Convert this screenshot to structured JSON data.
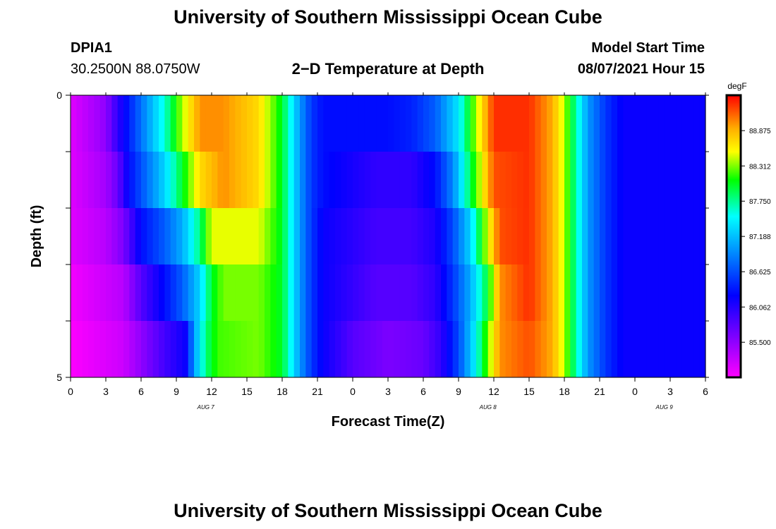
{
  "page": {
    "title_top": "University of Southern Mississippi Ocean Cube",
    "title_bottom": "University of Southern Mississippi Ocean Cube",
    "station": "DPIA1",
    "coords": "30.2500N  88.0750W",
    "subtitle": "2−D Temperature at Depth",
    "model_label": "Model Start Time",
    "model_time": "08/07/2021 Hour 15"
  },
  "chart_data": {
    "type": "heatmap",
    "title": "2−D Temperature at Depth",
    "xlabel": "Forecast Time(Z)",
    "ylabel": "Depth (ft)",
    "x_hours": [
      0,
      3,
      6,
      9,
      12,
      15,
      18,
      21,
      24,
      27,
      30,
      33,
      36,
      39,
      42,
      45,
      48,
      51,
      54
    ],
    "x_tick_labels": [
      "0",
      "3",
      "6",
      "9",
      "12",
      "15",
      "18",
      "21",
      "0",
      "3",
      "6",
      "9",
      "12",
      "15",
      "18",
      "21",
      "0",
      "3",
      "6"
    ],
    "date_labels": [
      {
        "label": "AUG  7",
        "hour": 11.5
      },
      {
        "label": "AUG  8",
        "hour": 35.5
      },
      {
        "label": "AUG  9",
        "hour": 50.5
      }
    ],
    "ylim": [
      0,
      5
    ],
    "y_tick_labels": [
      "0",
      "5"
    ],
    "depth_layers": [
      0,
      1,
      2,
      3,
      4
    ],
    "colorbar": {
      "unit": "degF",
      "range": [
        84.94,
        89.44
      ],
      "tick_values": [
        85.5,
        86.062,
        86.625,
        87.188,
        87.75,
        88.312,
        88.875
      ],
      "tick_labels": [
        "85.500",
        "86.062",
        "86.625",
        "87.188",
        "87.750",
        "88.312",
        "88.875"
      ]
    },
    "profiles": [
      {
        "depth": 0,
        "t": [
          [
            0,
            85.1
          ],
          [
            3,
            85.5
          ],
          [
            4,
            86.0
          ],
          [
            6,
            86.8
          ],
          [
            8,
            87.6
          ],
          [
            9.5,
            88.4
          ],
          [
            11,
            89.0
          ],
          [
            13,
            89.0
          ],
          [
            16,
            88.7
          ],
          [
            18,
            88.0
          ],
          [
            19.5,
            87.0
          ],
          [
            20.5,
            86.5
          ],
          [
            21.5,
            86.3
          ],
          [
            27,
            86.3
          ],
          [
            29,
            86.4
          ],
          [
            31,
            86.7
          ],
          [
            33,
            87.4
          ],
          [
            34.5,
            88.4
          ],
          [
            36,
            89.3
          ],
          [
            39,
            89.3
          ],
          [
            41,
            88.9
          ],
          [
            42,
            88.4
          ],
          [
            43,
            87.7
          ],
          [
            44,
            87.0
          ],
          [
            45.5,
            86.5
          ],
          [
            47,
            86.2
          ],
          [
            54,
            86.2
          ]
        ]
      },
      {
        "depth": 1,
        "t": [
          [
            0,
            85.1
          ],
          [
            3,
            85.4
          ],
          [
            4,
            85.7
          ],
          [
            5,
            86.3
          ],
          [
            6.5,
            86.8
          ],
          [
            8,
            87.3
          ],
          [
            9.5,
            88.0
          ],
          [
            11,
            88.7
          ],
          [
            13,
            89.0
          ],
          [
            16,
            88.7
          ],
          [
            18,
            88.0
          ],
          [
            19.5,
            87.0
          ],
          [
            20.5,
            86.5
          ],
          [
            21.5,
            86.3
          ],
          [
            26,
            86.0
          ],
          [
            29,
            86.0
          ],
          [
            31,
            86.3
          ],
          [
            32.5,
            86.9
          ],
          [
            34,
            87.9
          ],
          [
            36,
            89.2
          ],
          [
            39,
            89.3
          ],
          [
            41,
            88.9
          ],
          [
            42,
            88.4
          ],
          [
            43,
            87.7
          ],
          [
            44,
            87.0
          ],
          [
            45.5,
            86.5
          ],
          [
            47,
            86.2
          ],
          [
            54,
            86.2
          ]
        ]
      },
      {
        "depth": 2,
        "t": [
          [
            0,
            85.1
          ],
          [
            3,
            85.3
          ],
          [
            4.5,
            85.6
          ],
          [
            6,
            86.3
          ],
          [
            8,
            86.7
          ],
          [
            9.5,
            87.1
          ],
          [
            11,
            87.8
          ],
          [
            12,
            88.5
          ],
          [
            16,
            88.5
          ],
          [
            18,
            88.0
          ],
          [
            19.5,
            87.0
          ],
          [
            20.5,
            86.5
          ],
          [
            21.5,
            86.2
          ],
          [
            26,
            85.9
          ],
          [
            29,
            85.9
          ],
          [
            31,
            86.1
          ],
          [
            32.5,
            86.6
          ],
          [
            34,
            87.3
          ],
          [
            35.5,
            88.5
          ],
          [
            36.5,
            89.2
          ],
          [
            39,
            89.3
          ],
          [
            41,
            88.9
          ],
          [
            42,
            88.4
          ],
          [
            43,
            87.7
          ],
          [
            44,
            87.0
          ],
          [
            45.5,
            86.5
          ],
          [
            47,
            86.2
          ],
          [
            54,
            86.2
          ]
        ]
      },
      {
        "depth": 3,
        "t": [
          [
            0,
            85.0
          ],
          [
            4.5,
            85.3
          ],
          [
            6,
            85.8
          ],
          [
            8,
            86.3
          ],
          [
            9.5,
            86.7
          ],
          [
            11,
            87.3
          ],
          [
            12,
            88.0
          ],
          [
            13,
            88.3
          ],
          [
            16,
            88.3
          ],
          [
            18,
            88.0
          ],
          [
            19.5,
            87.0
          ],
          [
            20.5,
            86.5
          ],
          [
            21.5,
            86.2
          ],
          [
            26,
            85.8
          ],
          [
            29,
            85.8
          ],
          [
            31,
            86.0
          ],
          [
            32.5,
            86.5
          ],
          [
            34,
            87.1
          ],
          [
            35.5,
            88.0
          ],
          [
            36.5,
            89.0
          ],
          [
            39,
            89.3
          ],
          [
            41,
            88.9
          ],
          [
            42,
            88.4
          ],
          [
            43,
            87.7
          ],
          [
            44,
            87.0
          ],
          [
            45.5,
            86.5
          ],
          [
            47,
            86.2
          ],
          [
            54,
            86.2
          ]
        ]
      },
      {
        "depth": 4,
        "t": [
          [
            0,
            84.95
          ],
          [
            4.5,
            85.2
          ],
          [
            6,
            85.5
          ],
          [
            8,
            85.9
          ],
          [
            9.8,
            86.2
          ],
          [
            10.5,
            87.0
          ],
          [
            11.5,
            87.8
          ],
          [
            12.5,
            88.2
          ],
          [
            16,
            88.3
          ],
          [
            18,
            88.0
          ],
          [
            19.5,
            87.0
          ],
          [
            20.5,
            86.5
          ],
          [
            21.5,
            86.2
          ],
          [
            24,
            85.8
          ],
          [
            27,
            85.6
          ],
          [
            30,
            85.7
          ],
          [
            31.5,
            86.0
          ],
          [
            33,
            86.6
          ],
          [
            34.5,
            87.5
          ],
          [
            35.5,
            88.3
          ],
          [
            36.5,
            89.0
          ],
          [
            39,
            89.2
          ],
          [
            41,
            88.9
          ],
          [
            42,
            88.4
          ],
          [
            43,
            87.7
          ],
          [
            44,
            87.0
          ],
          [
            45.5,
            86.5
          ],
          [
            47,
            86.2
          ],
          [
            54,
            86.2
          ]
        ]
      }
    ]
  }
}
